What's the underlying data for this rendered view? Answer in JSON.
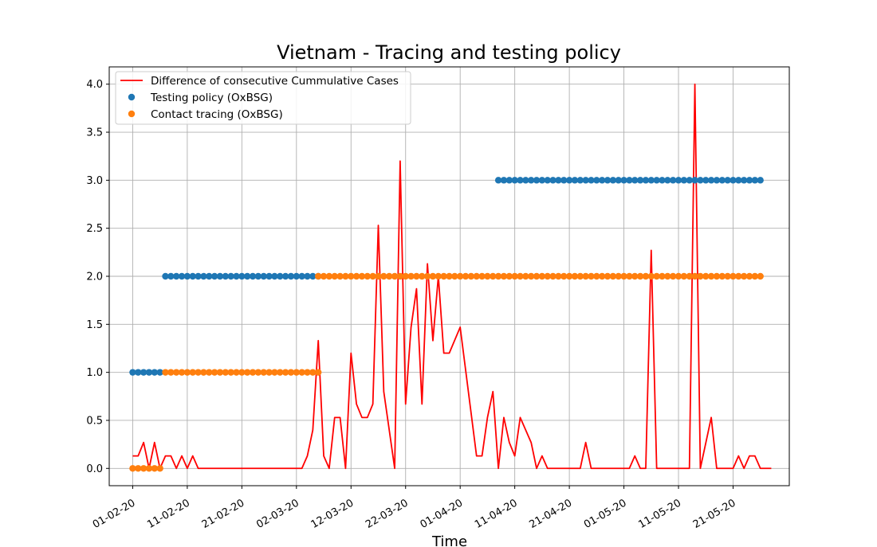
{
  "chart_data": {
    "type": "line",
    "title": "Vietnam - Tracing and testing policy",
    "xlabel": "Time",
    "ylabel": "",
    "x_start": "2020-01-31",
    "date_format": "DD-MM-YY",
    "xticks": [
      "01-02-20",
      "11-02-20",
      "21-02-20",
      "02-03-20",
      "12-03-20",
      "22-03-20",
      "01-04-20",
      "11-04-20",
      "21-04-20",
      "01-05-20",
      "11-05-20",
      "21-05-20"
    ],
    "ylim": [
      -0.18,
      4.18
    ],
    "yticks": [
      "0.0",
      "0.5",
      "1.0",
      "1.5",
      "2.0",
      "2.5",
      "3.0",
      "3.5",
      "4.0"
    ],
    "grid": true,
    "legend_position": "top-left",
    "colors": {
      "cases": "#ff0000",
      "testing": "#1f77b4",
      "tracing": "#ff7f0e"
    },
    "series": [
      {
        "name": "Difference of consecutive Cummulative Cases",
        "kind": "line",
        "points": [
          [
            "2020-02-01",
            0.13
          ],
          [
            "2020-02-02",
            0.13
          ],
          [
            "2020-02-03",
            0.27
          ],
          [
            "2020-02-04",
            0
          ],
          [
            "2020-02-05",
            0.27
          ],
          [
            "2020-02-06",
            0
          ],
          [
            "2020-02-07",
            0.13
          ],
          [
            "2020-02-08",
            0.13
          ],
          [
            "2020-02-09",
            0
          ],
          [
            "2020-02-10",
            0.13
          ],
          [
            "2020-02-11",
            0
          ],
          [
            "2020-02-12",
            0.13
          ],
          [
            "2020-02-13",
            0
          ],
          [
            "2020-03-03",
            0
          ],
          [
            "2020-03-04",
            0.13
          ],
          [
            "2020-03-05",
            0.4
          ],
          [
            "2020-03-06",
            1.33
          ],
          [
            "2020-03-07",
            0.13
          ],
          [
            "2020-03-08",
            0
          ],
          [
            "2020-03-09",
            0.53
          ],
          [
            "2020-03-10",
            0.53
          ],
          [
            "2020-03-11",
            0
          ],
          [
            "2020-03-12",
            1.2
          ],
          [
            "2020-03-13",
            0.67
          ],
          [
            "2020-03-14",
            0.53
          ],
          [
            "2020-03-15",
            0.53
          ],
          [
            "2020-03-16",
            0.67
          ],
          [
            "2020-03-17",
            2.53
          ],
          [
            "2020-03-18",
            0.8
          ],
          [
            "2020-03-19",
            0.4
          ],
          [
            "2020-03-20",
            0
          ],
          [
            "2020-03-21",
            3.2
          ],
          [
            "2020-03-22",
            0.67
          ],
          [
            "2020-03-23",
            1.47
          ],
          [
            "2020-03-24",
            1.87
          ],
          [
            "2020-03-25",
            0.67
          ],
          [
            "2020-03-26",
            2.13
          ],
          [
            "2020-03-27",
            1.33
          ],
          [
            "2020-03-28",
            2.0
          ],
          [
            "2020-03-29",
            1.2
          ],
          [
            "2020-03-30",
            1.2
          ],
          [
            "2020-04-01",
            1.47
          ],
          [
            "2020-04-04",
            0.13
          ],
          [
            "2020-04-05",
            0.13
          ],
          [
            "2020-04-06",
            0.53
          ],
          [
            "2020-04-07",
            0.8
          ],
          [
            "2020-04-08",
            0
          ],
          [
            "2020-04-09",
            0.53
          ],
          [
            "2020-04-10",
            0.27
          ],
          [
            "2020-04-11",
            0.13
          ],
          [
            "2020-04-12",
            0.53
          ],
          [
            "2020-04-14",
            0.27
          ],
          [
            "2020-04-15",
            0
          ],
          [
            "2020-04-16",
            0.13
          ],
          [
            "2020-04-17",
            0
          ],
          [
            "2020-04-23",
            0
          ],
          [
            "2020-04-24",
            0.27
          ],
          [
            "2020-04-25",
            0
          ],
          [
            "2020-05-02",
            0
          ],
          [
            "2020-05-03",
            0.13
          ],
          [
            "2020-05-04",
            0
          ],
          [
            "2020-05-05",
            0
          ],
          [
            "2020-05-06",
            2.27
          ],
          [
            "2020-05-07",
            0
          ],
          [
            "2020-05-13",
            0
          ],
          [
            "2020-05-14",
            4.0
          ],
          [
            "2020-05-15",
            0
          ],
          [
            "2020-05-17",
            0.53
          ],
          [
            "2020-05-18",
            0
          ],
          [
            "2020-05-21",
            0
          ],
          [
            "2020-05-22",
            0.13
          ],
          [
            "2020-05-23",
            0
          ],
          [
            "2020-05-24",
            0.13
          ],
          [
            "2020-05-25",
            0.13
          ],
          [
            "2020-05-26",
            0
          ],
          [
            "2020-05-28",
            0
          ]
        ]
      },
      {
        "name": "Testing policy (OxBSG)",
        "kind": "scatter",
        "segments": [
          {
            "from": "2020-02-01",
            "to": "2020-02-06",
            "value": 1
          },
          {
            "from": "2020-02-07",
            "to": "2020-03-06",
            "value": 2
          },
          {
            "from": "2020-04-08",
            "to": "2020-05-26",
            "value": 3
          }
        ]
      },
      {
        "name": "Contact tracing (OxBSG)",
        "kind": "scatter",
        "segments": [
          {
            "from": "2020-02-01",
            "to": "2020-02-06",
            "value": 0
          },
          {
            "from": "2020-02-07",
            "to": "2020-03-06",
            "value": 1
          },
          {
            "from": "2020-03-06",
            "to": "2020-05-26",
            "value": 2
          }
        ]
      }
    ]
  }
}
